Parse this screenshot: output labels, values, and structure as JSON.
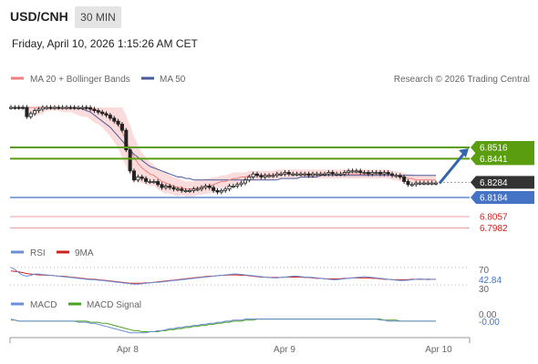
{
  "header": {
    "symbol": "USD/CNH",
    "timeframe": "30 MIN",
    "datetime": "Friday, April 10, 2026 1:15:26 AM CET"
  },
  "legend": {
    "ma20_bb": "MA 20 + Bollinger Bands",
    "ma50": "MA 50",
    "credit": "Research © 2026 Trading Central"
  },
  "colors": {
    "resistance": "#5a9e0f",
    "support_line": "#4472c4",
    "support_label": "#d21f1f",
    "current": "#333333",
    "ma20": "#f08080",
    "ma50": "#4a5a9a",
    "bb_fill": "#f9c9c9",
    "rsi": "#6a8fd4",
    "rsi_ma": "#cc2222",
    "macd": "#6a8fd4",
    "macd_signal": "#4aa021",
    "arrow": "#3366aa"
  },
  "chart_data": [
    {
      "type": "candlestick",
      "panel": "price",
      "x_ticks": [
        "Apr 8",
        "Apr 9",
        "Apr 10"
      ],
      "ylim": [
        6.79,
        6.866
      ],
      "levels": [
        {
          "value": 6.8516,
          "label": "6.8516",
          "kind": "resistance"
        },
        {
          "value": 6.8441,
          "label": "6.8441",
          "kind": "resistance"
        },
        {
          "value": 6.8284,
          "label": "6.8284",
          "kind": "current"
        },
        {
          "value": 6.8184,
          "label": "6.8184",
          "kind": "support"
        },
        {
          "value": 6.8057,
          "label": "6.8057",
          "kind": "support2"
        },
        {
          "value": 6.7982,
          "label": "6.7982",
          "kind": "support2"
        }
      ],
      "close": [
        6.894,
        6.891,
        6.886,
        6.879,
        6.872,
        6.874,
        6.876,
        6.877,
        6.879,
        6.88,
        6.879,
        6.88,
        6.879,
        6.879,
        6.88,
        6.879,
        6.878,
        6.878,
        6.879,
        6.878,
        6.877,
        6.876,
        6.875,
        6.874,
        6.873,
        6.871,
        6.869,
        6.867,
        6.863,
        6.85,
        6.836,
        6.83,
        6.832,
        6.831,
        6.829,
        6.829,
        6.829,
        6.827,
        6.825,
        6.826,
        6.825,
        6.824,
        6.824,
        6.823,
        6.823,
        6.823,
        6.824,
        6.824,
        6.825,
        6.826,
        6.825,
        6.823,
        6.822,
        6.823,
        6.824,
        6.826,
        6.826,
        6.827,
        6.828,
        6.83,
        6.832,
        6.834,
        6.833,
        6.832,
        6.833,
        6.833,
        6.833,
        6.834,
        6.834,
        6.835,
        6.834,
        6.834,
        6.834,
        6.834,
        6.834,
        6.833,
        6.834,
        6.834,
        6.834,
        6.834,
        6.835,
        6.834,
        6.834,
        6.834,
        6.835,
        6.836,
        6.836,
        6.836,
        6.835,
        6.835,
        6.834,
        6.835,
        6.835,
        6.834,
        6.835,
        6.834,
        6.833,
        6.833,
        6.832,
        6.829,
        6.827,
        6.827,
        6.828,
        6.828,
        6.828,
        6.828,
        6.828,
        6.828
      ],
      "ma20_series": [
        6.893,
        6.892,
        6.889,
        6.886,
        6.883,
        6.881,
        6.88,
        6.879,
        6.879,
        6.88,
        6.88,
        6.88,
        6.88,
        6.879,
        6.879,
        6.879,
        6.879,
        6.878,
        6.878,
        6.878,
        6.877,
        6.876,
        6.876,
        6.875,
        6.874,
        6.872,
        6.87,
        6.867,
        6.862,
        6.856,
        6.85,
        6.845,
        6.841,
        6.838,
        6.836,
        6.834,
        6.833,
        6.831,
        6.829,
        6.828,
        6.827,
        6.826,
        6.825,
        6.825,
        6.824,
        6.824,
        6.824,
        6.825,
        6.825,
        6.826,
        6.826,
        6.827,
        6.828,
        6.829,
        6.829,
        6.83,
        6.831,
        6.831,
        6.832,
        6.832,
        6.833,
        6.833,
        6.833,
        6.833,
        6.833,
        6.833,
        6.833,
        6.834,
        6.834,
        6.834,
        6.834,
        6.834,
        6.834,
        6.834,
        6.834,
        6.834,
        6.834,
        6.834,
        6.834,
        6.834,
        6.834,
        6.834,
        6.834,
        6.834,
        6.834,
        6.834,
        6.834,
        6.834,
        6.834,
        6.834,
        6.834,
        6.834,
        6.834,
        6.834,
        6.834,
        6.834,
        6.833,
        6.833,
        6.832,
        6.832,
        6.831,
        6.831,
        6.83,
        6.83,
        6.83,
        6.83,
        6.83,
        6.83
      ],
      "ma50_series": [
        6.888,
        6.888,
        6.887,
        6.887,
        6.886,
        6.886,
        6.885,
        6.885,
        6.884,
        6.884,
        6.883,
        6.883,
        6.882,
        6.882,
        6.881,
        6.88,
        6.879,
        6.878,
        6.877,
        6.876,
        6.875,
        6.873,
        6.871,
        6.869,
        6.867,
        6.865,
        6.862,
        6.859,
        6.856,
        6.853,
        6.85,
        6.847,
        6.845,
        6.843,
        6.841,
        6.839,
        6.838,
        6.837,
        6.836,
        6.835,
        6.834,
        6.833,
        6.832,
        6.832,
        6.831,
        6.831,
        6.83,
        6.83,
        6.83,
        6.83,
        6.83,
        6.83,
        6.83,
        6.83,
        6.83,
        6.83,
        6.83,
        6.83,
        6.83,
        6.83,
        6.83,
        6.83,
        6.83,
        6.83,
        6.83,
        6.83,
        6.83,
        6.83,
        6.831,
        6.831,
        6.831,
        6.831,
        6.831,
        6.832,
        6.832,
        6.832,
        6.832,
        6.832,
        6.833,
        6.833,
        6.833,
        6.833,
        6.833,
        6.833,
        6.833,
        6.833,
        6.833,
        6.833,
        6.833,
        6.833,
        6.833,
        6.833,
        6.833,
        6.833,
        6.833,
        6.833,
        6.833,
        6.833,
        6.833,
        6.833,
        6.833,
        6.833,
        6.833,
        6.833,
        6.833,
        6.833,
        6.833,
        6.833
      ],
      "bb_halfwidth": [
        0.004,
        0.005,
        0.007,
        0.008,
        0.008,
        0.008,
        0.007,
        0.006,
        0.005,
        0.004,
        0.004,
        0.004,
        0.004,
        0.004,
        0.004,
        0.004,
        0.005,
        0.005,
        0.006,
        0.006,
        0.007,
        0.008,
        0.009,
        0.01,
        0.012,
        0.013,
        0.015,
        0.016,
        0.017,
        0.017,
        0.016,
        0.014,
        0.012,
        0.01,
        0.009,
        0.008,
        0.007,
        0.007,
        0.007,
        0.007,
        0.006,
        0.006,
        0.006,
        0.005,
        0.005,
        0.005,
        0.005,
        0.005,
        0.005,
        0.005,
        0.005,
        0.005,
        0.004,
        0.004,
        0.004,
        0.004,
        0.004,
        0.004,
        0.003,
        0.003,
        0.003,
        0.003,
        0.003,
        0.003,
        0.003,
        0.003,
        0.003,
        0.003,
        0.003,
        0.003,
        0.003,
        0.003,
        0.003,
        0.003,
        0.003,
        0.003,
        0.003,
        0.003,
        0.003,
        0.003,
        0.003,
        0.003,
        0.003,
        0.003,
        0.003,
        0.003,
        0.003,
        0.003,
        0.003,
        0.003,
        0.003,
        0.003,
        0.003,
        0.003,
        0.003,
        0.003,
        0.003,
        0.003,
        0.003,
        0.003,
        0.003,
        0.003,
        0.003,
        0.003,
        0.003,
        0.003,
        0.003,
        0.003
      ],
      "arrow": {
        "from": 6.829,
        "to": 6.8516,
        "direction": "up"
      }
    },
    {
      "type": "line",
      "panel": "rsi",
      "legend": [
        "RSI",
        "9MA"
      ],
      "ylim": [
        20,
        80
      ],
      "y_ticks": [
        "70",
        "42.84",
        "30"
      ],
      "levels": [
        70,
        30
      ],
      "rsi_last": 42.84,
      "rsi": [
        70,
        65,
        58,
        52,
        50,
        52,
        55,
        55,
        54,
        53,
        52,
        51,
        50,
        49,
        48,
        47,
        46,
        45,
        44,
        43,
        42,
        42,
        41,
        40,
        39,
        38,
        37,
        36,
        35,
        34,
        33,
        32,
        32,
        33,
        34,
        35,
        36,
        36,
        37,
        38,
        39,
        40,
        41,
        42,
        43,
        44,
        45,
        46,
        47,
        48,
        49,
        50,
        51,
        52,
        53,
        54,
        55,
        55,
        54,
        53,
        52,
        51,
        50,
        49,
        48,
        47,
        46,
        46,
        47,
        48,
        49,
        50,
        50,
        49,
        48,
        48,
        47,
        46,
        45,
        44,
        43,
        42,
        42,
        43,
        44,
        45,
        46,
        47,
        48,
        49,
        48,
        47,
        46,
        45,
        44,
        43,
        42,
        41,
        40,
        40,
        41,
        42,
        43,
        44,
        43,
        42,
        42.84,
        42.84
      ],
      "ma9": [
        62,
        61,
        60,
        58,
        56,
        55,
        54,
        53,
        53,
        52,
        52,
        51,
        50,
        50,
        49,
        48,
        47,
        46,
        45,
        44,
        43,
        43,
        42,
        41,
        40,
        39,
        38,
        37,
        36,
        35,
        34,
        34,
        34,
        34,
        35,
        35,
        36,
        37,
        38,
        39,
        40,
        41,
        42,
        43,
        44,
        45,
        46,
        47,
        48,
        49,
        50,
        50,
        51,
        52,
        52,
        53,
        53,
        53,
        52,
        52,
        51,
        50,
        49,
        48,
        48,
        47,
        47,
        47,
        47,
        48,
        48,
        48,
        48,
        48,
        47,
        47,
        46,
        45,
        45,
        44,
        44,
        44,
        44,
        44,
        45,
        45,
        46,
        46,
        46,
        46,
        46,
        45,
        45,
        44,
        43,
        43,
        42,
        42,
        42,
        42,
        42,
        43,
        43,
        43,
        43,
        43,
        43,
        43
      ]
    },
    {
      "type": "line",
      "panel": "macd",
      "legend": [
        "MACD",
        "MACD Signal"
      ],
      "ylim": [
        -0.015,
        0.004
      ],
      "y_ticks": [
        "0.00",
        "-0.00"
      ],
      "macd": [
        0.0,
        -0.001,
        -0.002,
        -0.002,
        -0.002,
        -0.002,
        -0.002,
        -0.002,
        -0.002,
        -0.002,
        -0.002,
        -0.002,
        -0.002,
        -0.002,
        -0.002,
        -0.002,
        -0.002,
        -0.003,
        -0.003,
        -0.003,
        -0.004,
        -0.004,
        -0.005,
        -0.006,
        -0.007,
        -0.008,
        -0.009,
        -0.01,
        -0.011,
        -0.012,
        -0.013,
        -0.013,
        -0.013,
        -0.013,
        -0.013,
        -0.012,
        -0.012,
        -0.011,
        -0.011,
        -0.01,
        -0.009,
        -0.009,
        -0.008,
        -0.008,
        -0.007,
        -0.007,
        -0.006,
        -0.006,
        -0.005,
        -0.005,
        -0.004,
        -0.004,
        -0.003,
        -0.003,
        -0.002,
        -0.002,
        -0.001,
        -0.001,
        -0.001,
        0.0,
        0.0,
        0.0,
        0.0,
        0.0,
        0.0,
        0.0,
        0.0,
        0.0,
        0.0,
        0.0,
        0.0,
        0.0,
        0.0,
        0.0,
        0.0,
        0.0,
        0.0,
        0.0,
        0.0,
        0.0,
        0.0,
        0.0,
        0.0,
        0.0,
        0.0,
        0.0,
        0.0,
        0.0,
        0.0,
        0.0,
        0.0,
        0.0,
        0.0,
        -0.001,
        -0.001,
        -0.002,
        -0.002,
        -0.002,
        -0.002,
        -0.002,
        -0.002,
        -0.002,
        -0.002,
        -0.002,
        -0.002,
        -0.002,
        -0.002,
        -0.002
      ],
      "signal": [
        -0.001,
        -0.001,
        -0.002,
        -0.002,
        -0.002,
        -0.002,
        -0.002,
        -0.002,
        -0.002,
        -0.002,
        -0.002,
        -0.002,
        -0.002,
        -0.002,
        -0.002,
        -0.002,
        -0.002,
        -0.002,
        -0.002,
        -0.002,
        -0.003,
        -0.003,
        -0.003,
        -0.004,
        -0.004,
        -0.005,
        -0.006,
        -0.007,
        -0.008,
        -0.009,
        -0.01,
        -0.011,
        -0.011,
        -0.012,
        -0.012,
        -0.012,
        -0.012,
        -0.012,
        -0.011,
        -0.011,
        -0.01,
        -0.01,
        -0.009,
        -0.009,
        -0.008,
        -0.008,
        -0.007,
        -0.007,
        -0.006,
        -0.006,
        -0.005,
        -0.005,
        -0.004,
        -0.004,
        -0.003,
        -0.003,
        -0.002,
        -0.002,
        -0.002,
        -0.001,
        -0.001,
        -0.001,
        0.0,
        0.0,
        0.0,
        0.0,
        0.0,
        0.0,
        0.0,
        0.0,
        0.0,
        0.0,
        0.0,
        0.0,
        0.0,
        0.0,
        0.0,
        0.0,
        0.0,
        0.0,
        0.0,
        0.0,
        0.0,
        0.0,
        0.0,
        0.0,
        0.0,
        0.0,
        0.0,
        0.0,
        0.0,
        0.0,
        0.0,
        0.0,
        -0.001,
        -0.001,
        -0.001,
        -0.001,
        -0.002,
        -0.002,
        -0.002,
        -0.002,
        -0.002,
        -0.002,
        -0.002,
        -0.002,
        -0.002,
        -0.002
      ]
    }
  ]
}
